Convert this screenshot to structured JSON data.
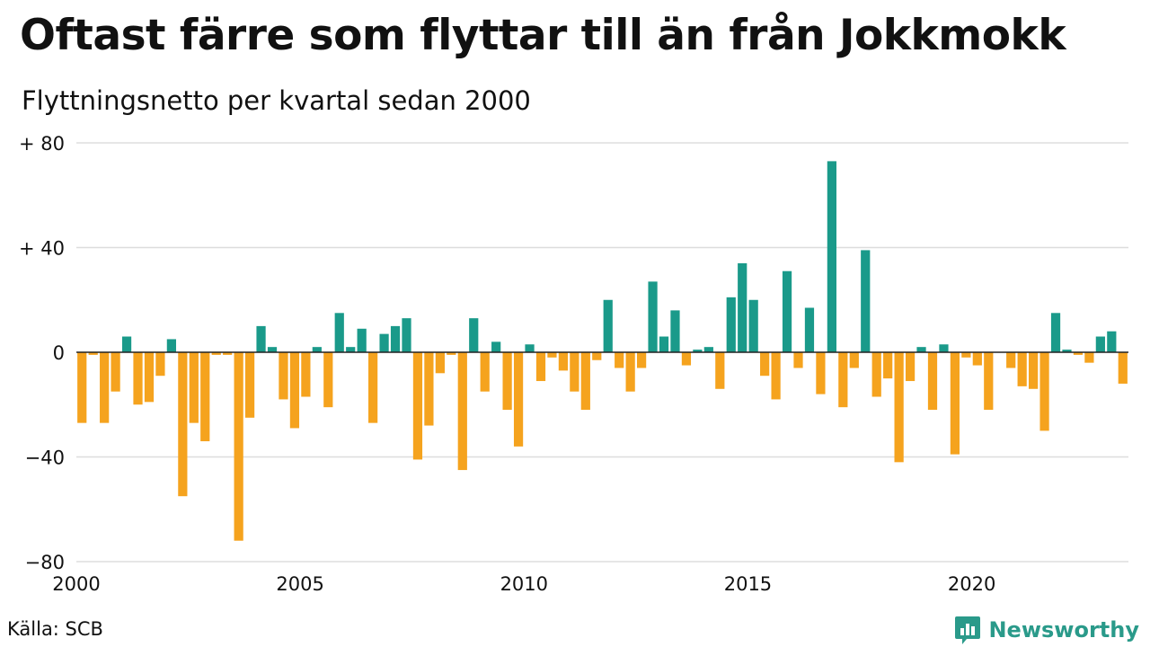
{
  "title": "Oftast färre som flyttar till än från Jokkmokk",
  "subtitle": "Flyttningsnetto per kvartal sedan 2000",
  "source": "Källa: SCB",
  "brand": {
    "name": "Newsworthy",
    "icon": "bar-chart-speech-bubble-icon",
    "color": "#2a9a8a"
  },
  "colors": {
    "positive": "#1a9a8a",
    "negative": "#f5a31e",
    "grid": "#dddddd"
  },
  "chart_data": {
    "type": "bar",
    "title": "Oftast färre som flyttar till än från Jokkmokk",
    "subtitle": "Flyttningsnetto per kvartal sedan 2000",
    "xlabel": "",
    "ylabel": "",
    "ylim": [
      -80,
      80
    ],
    "xlim": [
      2000,
      2023.5
    ],
    "yticks": [
      {
        "value": 80,
        "label": "+ 80"
      },
      {
        "value": 40,
        "label": "+ 40"
      },
      {
        "value": 0,
        "label": "0"
      },
      {
        "value": -40,
        "label": "−40"
      },
      {
        "value": -80,
        "label": "−80"
      }
    ],
    "xticks": [
      {
        "value": 2000,
        "label": "2000"
      },
      {
        "value": 2005,
        "label": "2005"
      },
      {
        "value": 2010,
        "label": "2010"
      },
      {
        "value": 2015,
        "label": "2015"
      },
      {
        "value": 2020,
        "label": "2020"
      }
    ],
    "grid": true,
    "start": "2000 Q1",
    "frequency": "quarterly",
    "values": [
      -27,
      -1,
      -27,
      -15,
      6,
      -20,
      -19,
      -9,
      5,
      -55,
      -27,
      -34,
      -1,
      -1,
      -72,
      -25,
      10,
      2,
      -18,
      -29,
      -17,
      2,
      -21,
      15,
      2,
      9,
      -27,
      7,
      10,
      13,
      -41,
      -28,
      -8,
      -1,
      -45,
      13,
      -15,
      4,
      -22,
      -36,
      3,
      -11,
      -2,
      -7,
      -15,
      -22,
      -3,
      20,
      -6,
      -15,
      -6,
      27,
      6,
      16,
      -5,
      1,
      2,
      -14,
      21,
      34,
      20,
      -9,
      -18,
      31,
      -6,
      17,
      -16,
      73,
      -21,
      -6,
      39,
      -17,
      -10,
      -42,
      -11,
      2,
      -22,
      3,
      -39,
      -2,
      -5,
      -22,
      0,
      -6,
      -13,
      -14,
      -30,
      15,
      1,
      -1,
      -4,
      6,
      8,
      -12
    ]
  }
}
